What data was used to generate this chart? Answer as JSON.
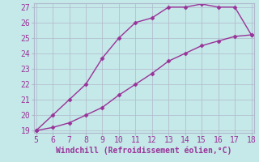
{
  "xlabel": "Windchill (Refroidissement éolien,°C)",
  "line1_x": [
    5,
    6,
    7,
    8,
    9,
    10,
    11,
    12,
    13,
    14,
    15,
    16,
    17,
    18
  ],
  "line1_y": [
    19,
    20,
    21,
    22,
    23.7,
    25,
    26,
    26.3,
    27,
    27,
    27.2,
    27,
    27,
    25.2
  ],
  "line2_x": [
    5,
    6,
    7,
    8,
    9,
    10,
    11,
    12,
    13,
    14,
    15,
    16,
    17,
    18
  ],
  "line2_y": [
    19,
    19.2,
    19.5,
    20.0,
    20.5,
    21.3,
    22.0,
    22.7,
    23.5,
    24.0,
    24.5,
    24.8,
    25.1,
    25.2
  ],
  "line_color": "#993399",
  "marker": "D",
  "marker_size": 2.5,
  "xlim": [
    5,
    18
  ],
  "ylim": [
    19,
    27
  ],
  "xticks": [
    5,
    6,
    7,
    8,
    9,
    10,
    11,
    12,
    13,
    14,
    15,
    16,
    17,
    18
  ],
  "yticks": [
    19,
    20,
    21,
    22,
    23,
    24,
    25,
    26,
    27
  ],
  "bg_color": "#c5e8e8",
  "grid_color": "#b0b8cc",
  "tick_label_color": "#993399",
  "xlabel_color": "#993399",
  "xlabel_fontsize": 7.0,
  "tick_fontsize": 7.0,
  "linewidth": 1.0
}
